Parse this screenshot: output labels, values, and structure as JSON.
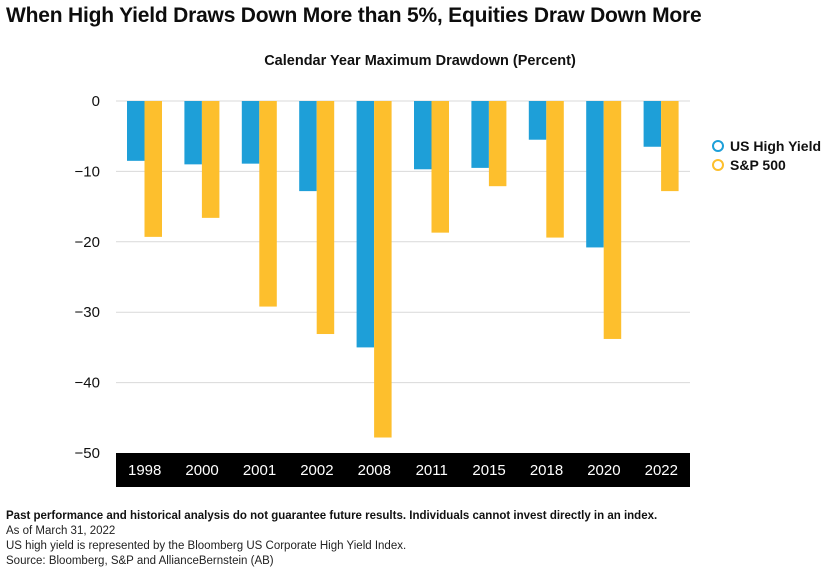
{
  "headline": "When High Yield Draws Down More than 5%, Equities Draw Down More",
  "colors": {
    "high_yield": "#1e9fd8",
    "sp500": "#fdbf2d",
    "axis_band": "#000000",
    "gridline": "#d9d9d9"
  },
  "chart_data": {
    "type": "bar",
    "title": "Calendar Year Maximum Drawdown (Percent)",
    "xlabel": "",
    "ylabel": "",
    "categories": [
      "1998",
      "2000",
      "2001",
      "2002",
      "2008",
      "2011",
      "2015",
      "2018",
      "2020",
      "2022"
    ],
    "series": [
      {
        "name": "US High Yield",
        "values": [
          -8.5,
          -9.0,
          -8.9,
          -12.8,
          -35.0,
          -9.7,
          -9.5,
          -5.5,
          -20.8,
          -6.5
        ]
      },
      {
        "name": "S&P 500",
        "values": [
          -19.3,
          -16.6,
          -29.2,
          -33.1,
          -47.8,
          -18.7,
          -12.1,
          -19.4,
          -33.8,
          -12.8
        ]
      }
    ],
    "ylim": [
      -50,
      0
    ],
    "yticks": [
      0,
      -10,
      -20,
      -30,
      -40,
      -50
    ],
    "ytick_labels": [
      "0",
      "−10",
      "−20",
      "−30",
      "−40",
      "−50"
    ],
    "grid": true,
    "legend_position": "right"
  },
  "footnotes": {
    "disclaimer": "Past performance and historical analysis do not guarantee future results. Individuals cannot invest directly in an index.",
    "as_of": "As of March 31, 2022",
    "representation": "US high yield is represented by the Bloomberg US Corporate High Yield Index.",
    "source": "Source: Bloomberg, S&P and AllianceBernstein (AB)"
  }
}
